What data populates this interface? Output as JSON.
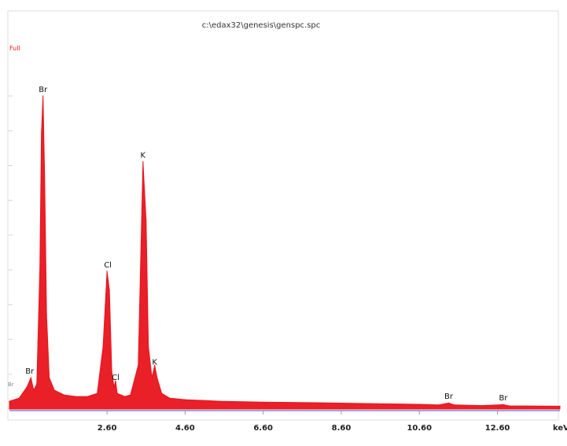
{
  "window": {
    "title": "c:\\edax32\\genesis\\genspc.spc",
    "label": "Full",
    "side_label": "Br"
  },
  "chart_data": {
    "type": "line",
    "title": "c:\\edax32\\genesis\\genspc.spc",
    "xlabel": "keV",
    "ylabel": "",
    "xlim": [
      0.1,
      14.2
    ],
    "ylim": [
      0,
      100
    ],
    "grid": false,
    "x_ticks": [
      "2.60",
      "4.60",
      "6.60",
      "8.60",
      "10.60",
      "12.60"
    ],
    "x_tick_values": [
      2.6,
      4.6,
      6.6,
      8.6,
      10.6,
      12.6
    ],
    "series": [
      {
        "color": "#e8141c",
        "points": [
          [
            0.1,
            2.5
          ],
          [
            0.35,
            3.5
          ],
          [
            0.55,
            7.0
          ],
          [
            0.65,
            10.0
          ],
          [
            0.72,
            6.0
          ],
          [
            0.8,
            8.0
          ],
          [
            0.88,
            45.0
          ],
          [
            0.92,
            88.0
          ],
          [
            0.96,
            100.0
          ],
          [
            1.0,
            75.0
          ],
          [
            1.05,
            30.0
          ],
          [
            1.12,
            10.0
          ],
          [
            1.25,
            6.0
          ],
          [
            1.5,
            4.5
          ],
          [
            1.8,
            4.0
          ],
          [
            2.1,
            4.0
          ],
          [
            2.35,
            5.0
          ],
          [
            2.5,
            20.0
          ],
          [
            2.6,
            44.0
          ],
          [
            2.66,
            38.0
          ],
          [
            2.72,
            12.0
          ],
          [
            2.78,
            7.0
          ],
          [
            2.82,
            9.0
          ],
          [
            2.86,
            5.0
          ],
          [
            3.05,
            4.0
          ],
          [
            3.2,
            4.5
          ],
          [
            3.4,
            14.0
          ],
          [
            3.52,
            79.0
          ],
          [
            3.6,
            60.0
          ],
          [
            3.66,
            20.0
          ],
          [
            3.75,
            10.0
          ],
          [
            3.82,
            14.0
          ],
          [
            3.88,
            10.0
          ],
          [
            4.0,
            5.0
          ],
          [
            4.2,
            3.5
          ],
          [
            4.6,
            3.0
          ],
          [
            5.5,
            2.5
          ],
          [
            6.6,
            2.2
          ],
          [
            8.0,
            2.0
          ],
          [
            9.5,
            1.7
          ],
          [
            10.6,
            1.5
          ],
          [
            11.1,
            1.3
          ],
          [
            11.35,
            1.9
          ],
          [
            11.5,
            1.3
          ],
          [
            12.2,
            1.1
          ],
          [
            12.75,
            1.4
          ],
          [
            12.9,
            1.0
          ],
          [
            14.2,
            0.9
          ]
        ]
      }
    ],
    "annotations": [
      {
        "label": "Br",
        "x": 0.96,
        "y": 100.0
      },
      {
        "label": "Cl",
        "x": 2.62,
        "y": 44.0
      },
      {
        "label": "K",
        "x": 3.52,
        "y": 79.0
      },
      {
        "label": "Br",
        "x": 0.62,
        "y": 10.0
      },
      {
        "label": "Cl",
        "x": 2.82,
        "y": 8.0
      },
      {
        "label": "K",
        "x": 3.82,
        "y": 13.0
      },
      {
        "label": "Br",
        "x": 11.35,
        "y": 2.0
      },
      {
        "label": "Br",
        "x": 12.75,
        "y": 1.5
      }
    ]
  }
}
